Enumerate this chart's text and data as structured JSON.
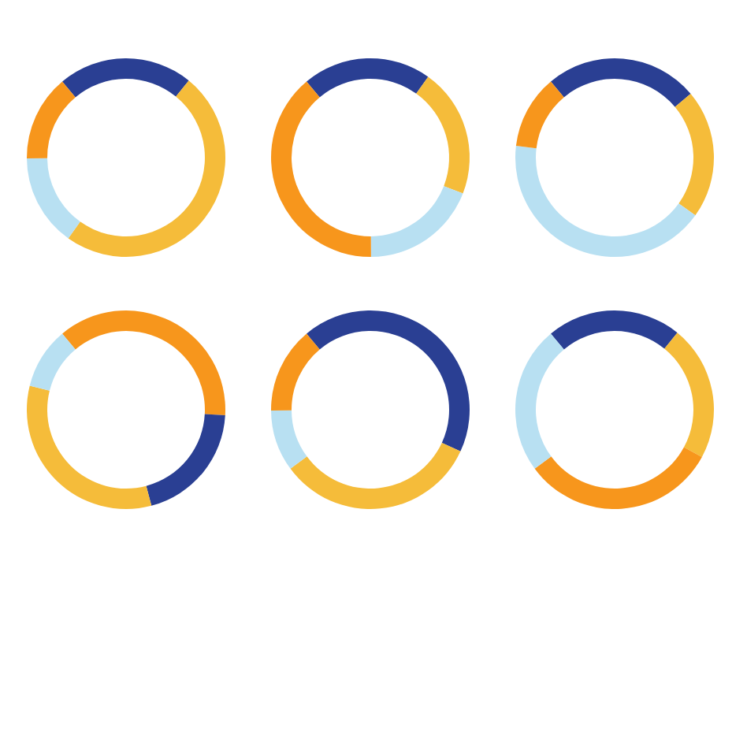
{
  "chart_data": [
    {
      "type": "donut",
      "categories": [
        null,
        null,
        null,
        null
      ],
      "values": [
        22,
        49,
        15,
        14
      ],
      "colors": [
        "#2a3f93",
        "#f5bc3a",
        "#b8e0f2",
        "#f7961c"
      ]
    },
    {
      "type": "donut",
      "categories": [
        null,
        null,
        null,
        null
      ],
      "values": [
        21,
        21,
        19,
        39
      ],
      "colors": [
        "#2a3f93",
        "#f5bc3a",
        "#b8e0f2",
        "#f7961c"
      ]
    },
    {
      "type": "donut",
      "categories": [
        null,
        null,
        null,
        null
      ],
      "values": [
        25,
        21,
        42,
        12
      ],
      "colors": [
        "#2a3f93",
        "#f5bc3a",
        "#b8e0f2",
        "#f7961c"
      ]
    },
    {
      "type": "donut",
      "categories": [
        null,
        null,
        null,
        null
      ],
      "values": [
        37,
        20,
        33,
        10
      ],
      "colors": [
        "#f7961c",
        "#2a3f93",
        "#f5bc3a",
        "#b8e0f2"
      ]
    },
    {
      "type": "donut",
      "categories": [
        null,
        null,
        null,
        null
      ],
      "values": [
        43,
        33,
        10,
        14
      ],
      "colors": [
        "#2a3f93",
        "#f5bc3a",
        "#b8e0f2",
        "#f7961c"
      ]
    },
    {
      "type": "donut",
      "categories": [
        null,
        null,
        null,
        null
      ],
      "values": [
        22,
        22,
        32,
        24
      ],
      "colors": [
        "#2a3f93",
        "#f5bc3a",
        "#f7961c",
        "#b8e0f2"
      ]
    }
  ]
}
